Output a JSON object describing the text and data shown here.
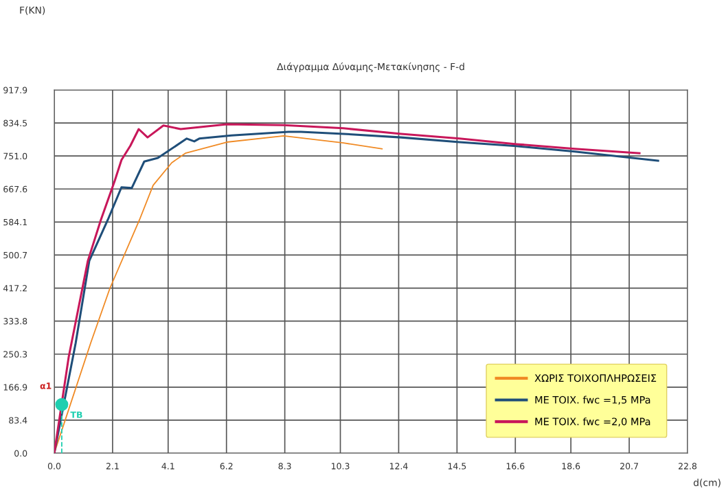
{
  "chart_data": {
    "type": "line",
    "title": "Διάγραμμα Δύναμης-Μετακίνησης - F-d",
    "xlabel": "d(cm)",
    "xlim": [
      0,
      22.8
    ],
    "ylim": [
      0,
      917.9
    ],
    "xticks": [
      {
        "value": 0,
        "label": "0.0"
      },
      2.1,
      4.1,
      6.2,
      8.3,
      10.3,
      12.4,
      14.5,
      16.6,
      18.6,
      20.7,
      22.8
    ],
    "yticks": [
      {
        "value": 0,
        "label": "0.0"
      },
      83.4,
      166.9,
      250.3,
      333.8,
      417.2,
      500.7,
      584.1,
      667.6,
      {
        "value": 751,
        "label": "751.0"
      },
      834.5,
      917.9
    ],
    "grid": true,
    "legend": "bottom right",
    "line_style": "solid",
    "marker": "none",
    "series": [
      {
        "name": "ΧΩΡΙΣ ΤΟΙΧΟΠΛΗΡΩΣΕΙΣ",
        "color": "#f08a24",
        "x": [
          0,
          1.31,
          2.0,
          3.07,
          3.56,
          4.23,
          4.72,
          6.21,
          8.26,
          9.67,
          10.41,
          11.8
        ],
        "values": [
          0,
          278,
          416,
          590,
          677,
          734,
          758,
          786,
          802,
          790,
          784,
          769
        ]
      },
      {
        "name": "ΜΕ ΤΟΙΧ. fwc =1,5 MPa",
        "color": "#1f4e79",
        "x": [
          0,
          0.77,
          1.26,
          1.93,
          2.42,
          2.79,
          3.24,
          3.73,
          4.77,
          5.04,
          5.22,
          6.38,
          8.43,
          8.88,
          10.41,
          12.49,
          14.59,
          16.64,
          18.74,
          20.82,
          21.74
        ],
        "values": [
          0,
          278,
          486,
          590,
          672,
          670,
          737,
          746,
          795,
          788,
          795,
          803,
          812,
          812,
          807,
          798,
          786,
          776,
          762,
          746,
          739
        ]
      },
      {
        "name": "ΜΕ ΤΟΙΧ. fwc =2,0 MPa",
        "color": "#c8175a",
        "x": [
          0,
          0.52,
          1.21,
          1.68,
          2.18,
          2.42,
          2.74,
          3.04,
          3.36,
          3.93,
          4.55,
          6.21,
          8.26,
          10.41,
          12.49,
          14.59,
          16.64,
          18.74,
          21.07
        ],
        "values": [
          0,
          243,
          486,
          590,
          689,
          741,
          777,
          819,
          798,
          828,
          819,
          831,
          829,
          821,
          807,
          795,
          781,
          769,
          758
        ]
      },
      {
        "type": "scatter",
        "color": "#1fcfb0",
        "marker": "circle",
        "x": [
          0.27
        ],
        "values": [
          123
        ]
      },
      {
        "color": "#1fcfb0",
        "line_style": "dashed",
        "x": [
          0.27,
          0.27
        ],
        "values": [
          0,
          123
        ]
      }
    ],
    "annotations": [
      "F(KN)",
      "α1",
      {
        "text": "TB",
        "x": 0.27,
        "y": 123
      }
    ]
  }
}
